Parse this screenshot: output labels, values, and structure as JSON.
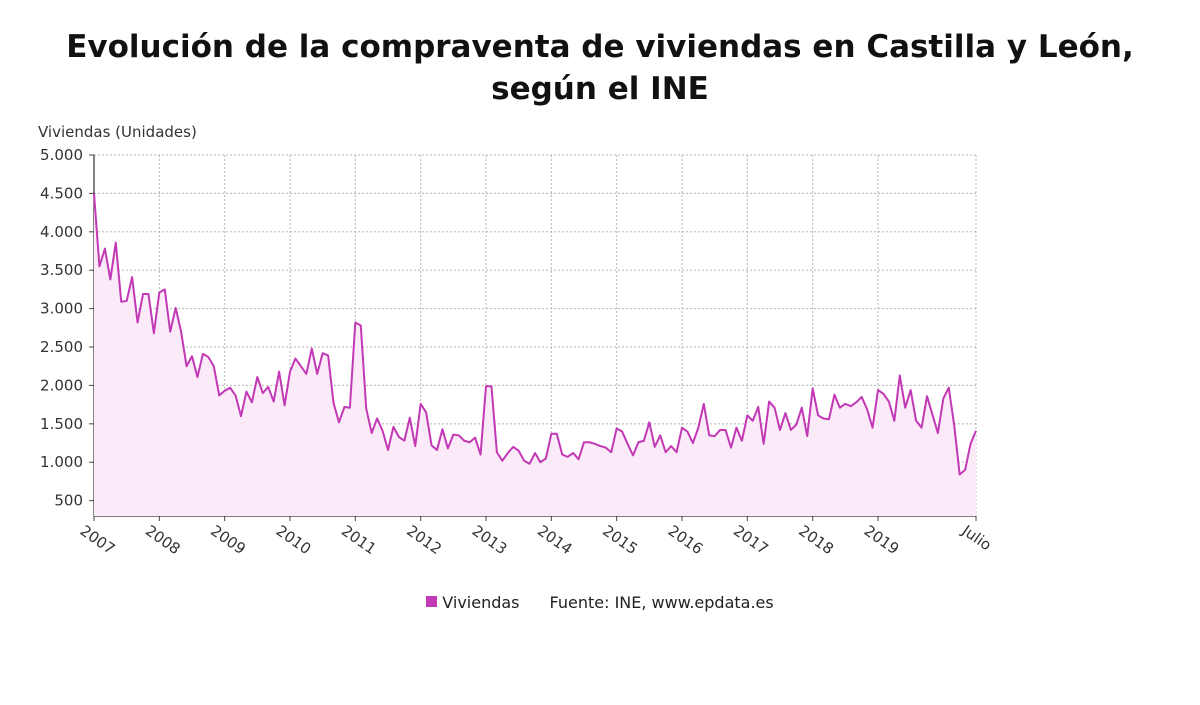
{
  "title": "Evolución de la compraventa de viviendas en Castilla y León, según el INE",
  "source": "Fuente: INE, www.epdata.es",
  "chart_data": {
    "type": "area",
    "ylabel": "Viviendas (Unidades)",
    "ylim": [
      300,
      5000
    ],
    "yticks": [
      5000,
      4500,
      4000,
      3500,
      3000,
      2500,
      2000,
      1500,
      1000,
      500
    ],
    "ytick_labels": [
      "5.000",
      "4.500",
      "4.000",
      "3.500",
      "3.000",
      "2.500",
      "2.000",
      "1.500",
      "1.000",
      "500"
    ],
    "x_start": "2007-01",
    "x_end": "2020-07",
    "x_tick_labels": [
      "2007",
      "2008",
      "2009",
      "2010",
      "2011",
      "2012",
      "2013",
      "2014",
      "2015",
      "2016",
      "2017",
      "2018",
      "2019",
      "Julio"
    ],
    "grid": true,
    "legend_position": "bottom",
    "series": [
      {
        "name": "Viviendas",
        "color": "#c238b5",
        "fill": "#fbeaf8",
        "values": [
          4500,
          3550,
          3780,
          3380,
          3860,
          3090,
          3100,
          3410,
          2820,
          3190,
          3190,
          2680,
          3210,
          3250,
          2700,
          3010,
          2700,
          2250,
          2380,
          2110,
          2410,
          2370,
          2250,
          1870,
          1930,
          1970,
          1870,
          1600,
          1920,
          1780,
          2110,
          1900,
          1980,
          1790,
          2180,
          1740,
          2180,
          2350,
          2250,
          2150,
          2480,
          2150,
          2420,
          2390,
          1770,
          1520,
          1720,
          1710,
          2820,
          2780,
          1700,
          1380,
          1570,
          1410,
          1160,
          1460,
          1330,
          1280,
          1580,
          1210,
          1760,
          1650,
          1220,
          1160,
          1430,
          1180,
          1360,
          1350,
          1280,
          1260,
          1320,
          1100,
          1990,
          1990,
          1130,
          1020,
          1120,
          1200,
          1150,
          1020,
          980,
          1120,
          1000,
          1050,
          1370,
          1370,
          1100,
          1070,
          1120,
          1040,
          1260,
          1260,
          1240,
          1210,
          1190,
          1130,
          1440,
          1400,
          1240,
          1090,
          1260,
          1280,
          1520,
          1200,
          1350,
          1130,
          1210,
          1130,
          1450,
          1400,
          1250,
          1450,
          1760,
          1350,
          1340,
          1420,
          1420,
          1190,
          1450,
          1280,
          1610,
          1540,
          1720,
          1240,
          1790,
          1710,
          1420,
          1640,
          1420,
          1490,
          1710,
          1340,
          1960,
          1610,
          1570,
          1560,
          1880,
          1710,
          1760,
          1730,
          1780,
          1850,
          1690,
          1450,
          1940,
          1890,
          1790,
          1540,
          2130,
          1710,
          1940,
          1540,
          1450,
          1860,
          1620,
          1380,
          1830,
          1970,
          1480,
          840,
          900,
          1240,
          1410
        ]
      }
    ]
  }
}
